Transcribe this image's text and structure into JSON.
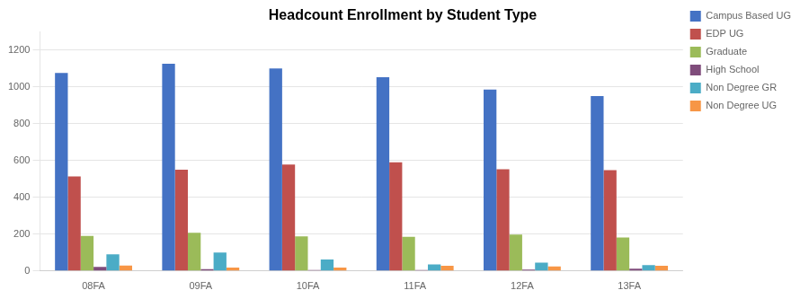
{
  "chart_data": {
    "type": "bar",
    "title": "Headcount Enrollment by Student Type",
    "categories": [
      "08FA",
      "09FA",
      "10FA",
      "11FA",
      "12FA",
      "13FA"
    ],
    "series": [
      {
        "name": "Campus Based UG",
        "color": "#4472C4",
        "values": [
          1075,
          1125,
          1100,
          1052,
          985,
          950
        ]
      },
      {
        "name": "EDP UG",
        "color": "#C0504D",
        "values": [
          513,
          550,
          578,
          590,
          552,
          547
        ]
      },
      {
        "name": "Graduate",
        "color": "#9BBB59",
        "values": [
          190,
          207,
          188,
          185,
          198,
          182
        ]
      },
      {
        "name": "High School",
        "color": "#7F4C7B",
        "values": [
          22,
          10,
          5,
          5,
          8,
          12
        ]
      },
      {
        "name": "Non Degree GR",
        "color": "#4BACC6",
        "values": [
          90,
          100,
          63,
          35,
          45,
          32
        ]
      },
      {
        "name": "Non Degree UG",
        "color": "#F79646",
        "values": [
          30,
          18,
          18,
          28,
          25,
          28
        ]
      }
    ],
    "ylim": [
      0,
      1300
    ],
    "yticks": [
      0,
      200,
      400,
      600,
      800,
      1000,
      1200
    ],
    "grid": true,
    "legend": "right"
  }
}
